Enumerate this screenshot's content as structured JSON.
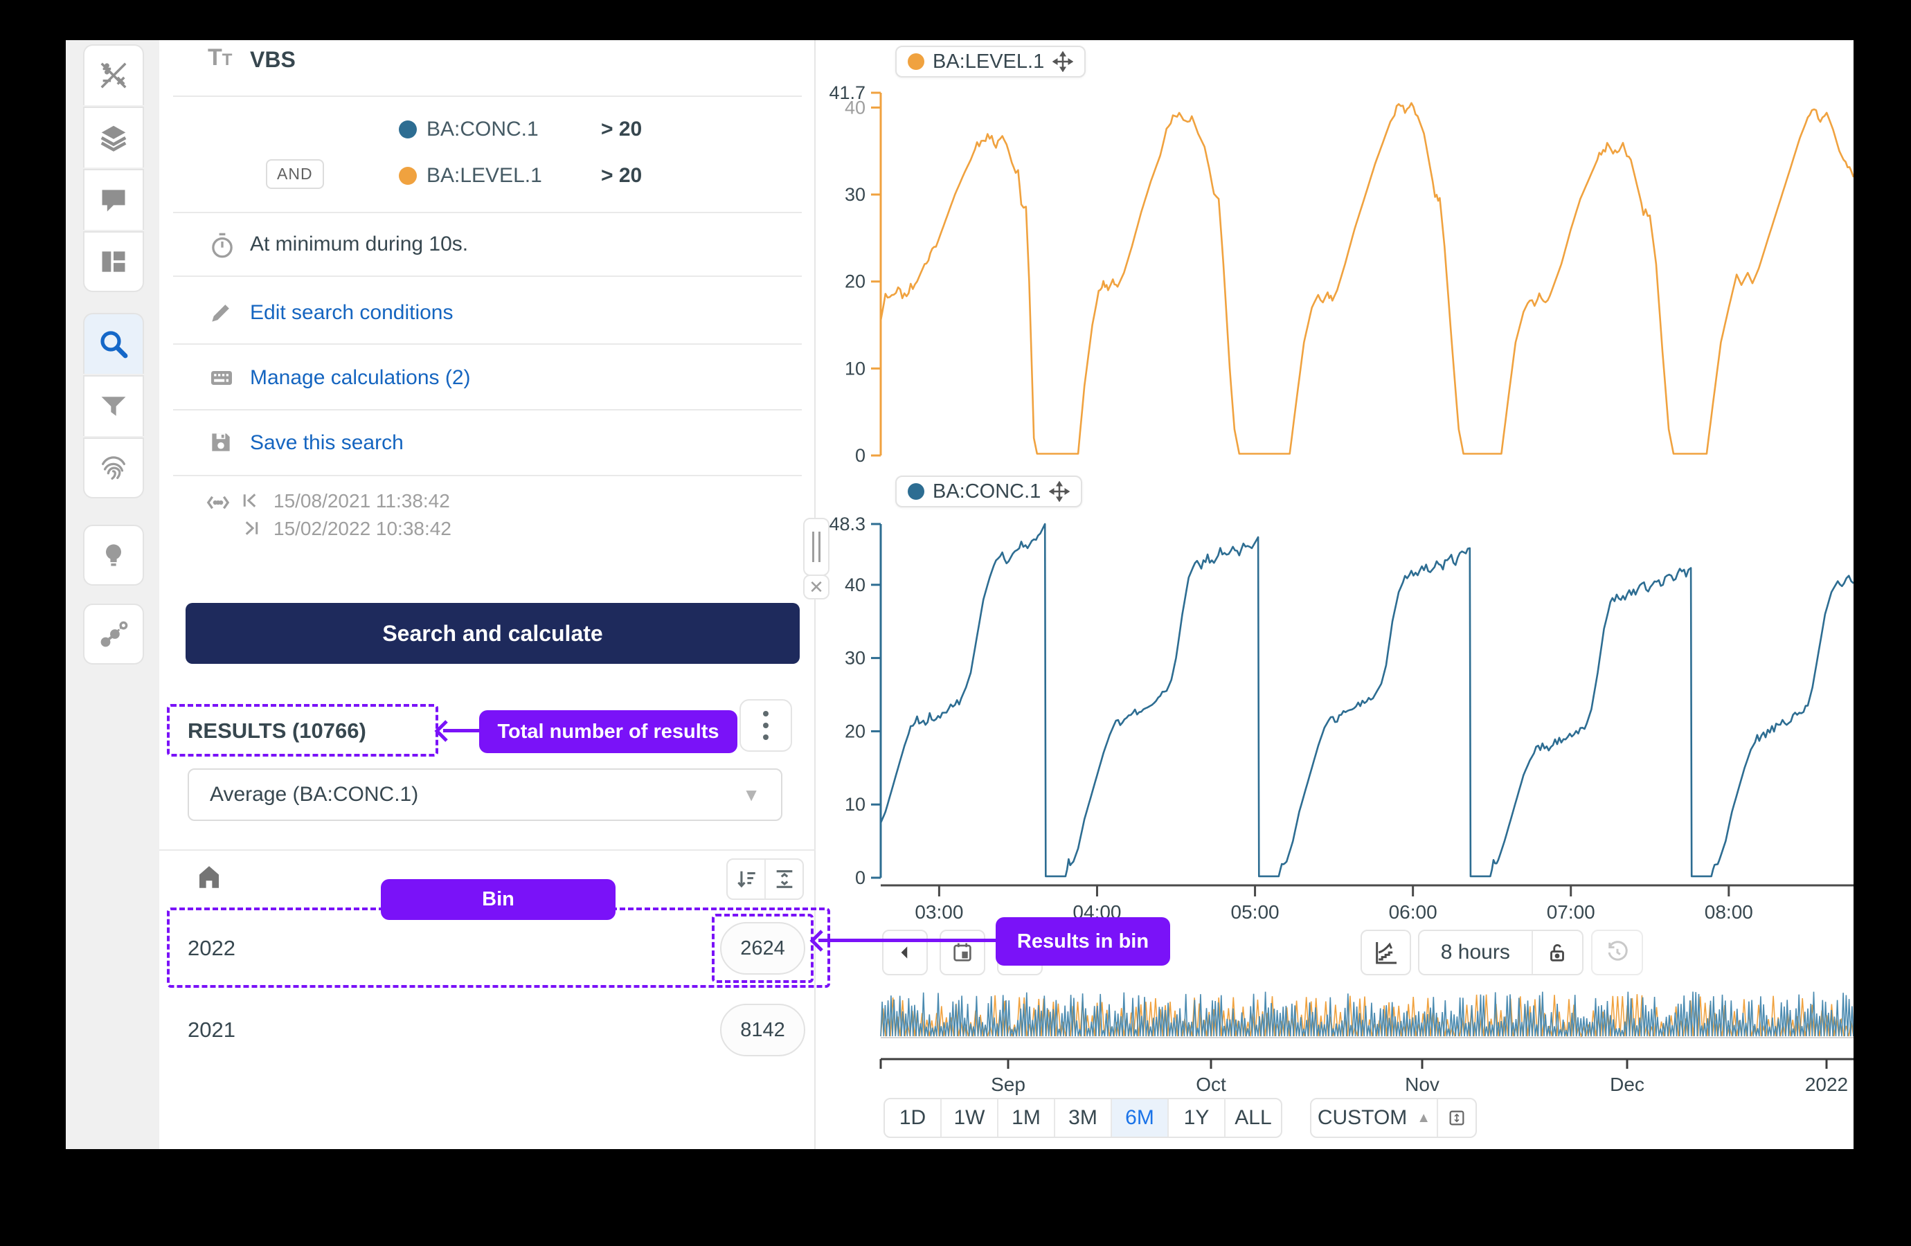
{
  "sidebar": {
    "items": [
      {
        "icon": "formulas-icon"
      },
      {
        "icon": "layers-icon"
      },
      {
        "icon": "comments-icon"
      },
      {
        "icon": "dashboard-icon"
      },
      {
        "icon": "search-icon",
        "active": true
      },
      {
        "icon": "filter-icon"
      },
      {
        "icon": "fingerprint-icon"
      },
      {
        "icon": "recommendations-icon"
      },
      {
        "icon": "context-icon"
      }
    ]
  },
  "search_panel": {
    "title": "VBS",
    "conditions": [
      {
        "operator": "",
        "tag": "BA:CONC.1",
        "comparison": "> 20",
        "color": "#2d6d92"
      },
      {
        "operator": "AND",
        "tag": "BA:LEVEL.1",
        "comparison": "> 20",
        "color": "#f0a23f"
      }
    ],
    "duration_condition": "At minimum during 10s.",
    "actions": [
      {
        "label": "Edit search conditions",
        "icon": "pencil-icon"
      },
      {
        "label": "Manage calculations (2)",
        "icon": "calculator-icon"
      },
      {
        "label": "Save this search",
        "icon": "save-icon"
      }
    ],
    "time_range": {
      "start": "15/08/2021 11:38:42",
      "end": "15/02/2022 10:38:42"
    },
    "search_button_label": "Search and calculate",
    "results_title": "RESULTS (10766)",
    "aggregation_selector": "Average (BA:CONC.1)",
    "bins": [
      {
        "label": "2022",
        "count": "2624"
      },
      {
        "label": "2021",
        "count": "8142"
      }
    ]
  },
  "annotations": {
    "accent_color": "#7a12f8",
    "total_results_label": "Total number of results",
    "bin_label": "Bin",
    "results_in_bin_label": "Results in bin"
  },
  "toolbar": {
    "duration_label": "8 hours"
  },
  "timeline": {
    "labels": [
      "Sep",
      "Oct",
      "Nov",
      "Dec",
      "2022"
    ]
  },
  "range_selector": {
    "buttons": [
      "1D",
      "1W",
      "1M",
      "3M",
      "6M",
      "1Y",
      "ALL"
    ],
    "active": "6M",
    "custom_label": "CUSTOM"
  },
  "chart_data": [
    {
      "type": "line",
      "legend": "BA:LEVEL.1",
      "color": "#f0a23f",
      "ylim": [
        0,
        41.7
      ],
      "yticks": [
        0,
        10,
        20,
        30,
        40
      ],
      "ymax_label": "41.7",
      "x_domain_hours": [
        2.63,
        8.79
      ],
      "xtick_hours": [
        3,
        4,
        5,
        6,
        7,
        8
      ],
      "xtick_labels": [
        "03:00",
        "04:00",
        "05:00",
        "06:00",
        "07:00",
        "08:00"
      ],
      "noise": {
        "seed": 7,
        "amp": 0.45
      },
      "points": [
        [
          2.63,
          15.5
        ],
        [
          2.66,
          18.5
        ],
        [
          2.7,
          18.0
        ],
        [
          2.74,
          19.0
        ],
        [
          2.78,
          18.2
        ],
        [
          2.82,
          19.3
        ],
        [
          2.86,
          20.0
        ],
        [
          2.92,
          22.5
        ],
        [
          2.98,
          24.0
        ],
        [
          3.04,
          27.0
        ],
        [
          3.1,
          30.0
        ],
        [
          3.16,
          32.5
        ],
        [
          3.2,
          34.0
        ],
        [
          3.24,
          35.8
        ],
        [
          3.28,
          36.2
        ],
        [
          3.32,
          36.8
        ],
        [
          3.36,
          35.8
        ],
        [
          3.4,
          36.4
        ],
        [
          3.44,
          35.0
        ],
        [
          3.47,
          33.0
        ],
        [
          3.5,
          32.8
        ],
        [
          3.52,
          29.0
        ],
        [
          3.55,
          28.6
        ],
        [
          3.57,
          20.0
        ],
        [
          3.59,
          8.0
        ],
        [
          3.6,
          2.0
        ],
        [
          3.62,
          0.2
        ],
        [
          3.88,
          0.2
        ],
        [
          3.92,
          8.0
        ],
        [
          3.97,
          15.0
        ],
        [
          4.01,
          18.8
        ],
        [
          4.04,
          19.8
        ],
        [
          4.07,
          19.0
        ],
        [
          4.1,
          20.2
        ],
        [
          4.13,
          19.4
        ],
        [
          4.17,
          21.0
        ],
        [
          4.22,
          24.0
        ],
        [
          4.28,
          28.0
        ],
        [
          4.34,
          31.5
        ],
        [
          4.4,
          34.5
        ],
        [
          4.44,
          37.5
        ],
        [
          4.48,
          38.8
        ],
        [
          4.52,
          39.2
        ],
        [
          4.56,
          38.4
        ],
        [
          4.6,
          39.0
        ],
        [
          4.64,
          37.0
        ],
        [
          4.68,
          35.5
        ],
        [
          4.71,
          33.0
        ],
        [
          4.74,
          30.0
        ],
        [
          4.77,
          29.5
        ],
        [
          4.8,
          22.0
        ],
        [
          4.84,
          10.0
        ],
        [
          4.87,
          3.0
        ],
        [
          4.9,
          0.2
        ],
        [
          5.22,
          0.2
        ],
        [
          5.26,
          6.0
        ],
        [
          5.31,
          13.0
        ],
        [
          5.36,
          17.0
        ],
        [
          5.4,
          18.5
        ],
        [
          5.43,
          17.6
        ],
        [
          5.46,
          18.8
        ],
        [
          5.49,
          17.8
        ],
        [
          5.52,
          19.0
        ],
        [
          5.57,
          22.0
        ],
        [
          5.63,
          26.0
        ],
        [
          5.7,
          30.0
        ],
        [
          5.76,
          33.5
        ],
        [
          5.82,
          36.5
        ],
        [
          5.87,
          39.0
        ],
        [
          5.91,
          40.3
        ],
        [
          5.95,
          39.6
        ],
        [
          5.99,
          40.4
        ],
        [
          6.03,
          39.0
        ],
        [
          6.07,
          37.0
        ],
        [
          6.11,
          33.0
        ],
        [
          6.14,
          30.0
        ],
        [
          6.17,
          29.6
        ],
        [
          6.2,
          24.0
        ],
        [
          6.25,
          12.0
        ],
        [
          6.29,
          3.0
        ],
        [
          6.32,
          0.2
        ],
        [
          6.56,
          0.2
        ],
        [
          6.6,
          6.0
        ],
        [
          6.65,
          13.0
        ],
        [
          6.7,
          16.5
        ],
        [
          6.74,
          18.0
        ],
        [
          6.77,
          17.2
        ],
        [
          6.8,
          18.4
        ],
        [
          6.84,
          17.6
        ],
        [
          6.88,
          19.0
        ],
        [
          6.94,
          22.0
        ],
        [
          7.0,
          26.0
        ],
        [
          7.06,
          29.5
        ],
        [
          7.12,
          32.0
        ],
        [
          7.18,
          34.5
        ],
        [
          7.23,
          35.6
        ],
        [
          7.28,
          34.8
        ],
        [
          7.33,
          35.7
        ],
        [
          7.38,
          34.0
        ],
        [
          7.42,
          31.0
        ],
        [
          7.46,
          28.0
        ],
        [
          7.5,
          27.6
        ],
        [
          7.54,
          22.0
        ],
        [
          7.58,
          12.0
        ],
        [
          7.62,
          3.0
        ],
        [
          7.65,
          0.2
        ],
        [
          7.86,
          0.2
        ],
        [
          7.9,
          6.0
        ],
        [
          7.95,
          13.0
        ],
        [
          8.0,
          17.0
        ],
        [
          8.05,
          20.8
        ],
        [
          8.08,
          19.6
        ],
        [
          8.12,
          21.0
        ],
        [
          8.15,
          19.8
        ],
        [
          8.19,
          21.5
        ],
        [
          8.25,
          25.0
        ],
        [
          8.32,
          29.0
        ],
        [
          8.39,
          33.0
        ],
        [
          8.45,
          36.5
        ],
        [
          8.5,
          38.8
        ],
        [
          8.54,
          39.6
        ],
        [
          8.58,
          38.6
        ],
        [
          8.62,
          39.4
        ],
        [
          8.66,
          37.5
        ],
        [
          8.7,
          35.0
        ],
        [
          8.74,
          33.5
        ],
        [
          8.79,
          32.0
        ]
      ]
    },
    {
      "type": "line",
      "legend": "BA:CONC.1",
      "color": "#2d6d92",
      "ylim": [
        0,
        48.3
      ],
      "yticks": [
        0,
        10,
        20,
        30,
        40
      ],
      "ymax_label": "48.3",
      "x_domain_hours": [
        2.63,
        8.79
      ],
      "xtick_hours": [
        3,
        4,
        5,
        6,
        7,
        8
      ],
      "xtick_labels": [
        "03:00",
        "04:00",
        "05:00",
        "06:00",
        "07:00",
        "08:00"
      ],
      "noise": {
        "seed": 13,
        "amp": 0.55
      },
      "points": [
        [
          2.63,
          7.5
        ],
        [
          2.66,
          9.0
        ],
        [
          2.7,
          12.0
        ],
        [
          2.74,
          15.0
        ],
        [
          2.78,
          18.0
        ],
        [
          2.82,
          20.5
        ],
        [
          2.86,
          21.5
        ],
        [
          2.9,
          21.0
        ],
        [
          2.94,
          22.0
        ],
        [
          2.98,
          21.5
        ],
        [
          3.02,
          22.5
        ],
        [
          3.06,
          23.0
        ],
        [
          3.1,
          23.5
        ],
        [
          3.14,
          24.5
        ],
        [
          3.17,
          26.0
        ],
        [
          3.2,
          28.0
        ],
        [
          3.24,
          33.0
        ],
        [
          3.28,
          38.0
        ],
        [
          3.32,
          41.0
        ],
        [
          3.36,
          43.5
        ],
        [
          3.4,
          44.0
        ],
        [
          3.44,
          43.2
        ],
        [
          3.48,
          44.8
        ],
        [
          3.52,
          45.5
        ],
        [
          3.56,
          45.0
        ],
        [
          3.6,
          46.5
        ],
        [
          3.64,
          47.0
        ],
        [
          3.67,
          48.3
        ],
        [
          3.675,
          0.2
        ],
        [
          3.8,
          0.2
        ],
        [
          3.82,
          2.0
        ],
        [
          3.85,
          2.2
        ],
        [
          3.88,
          4.0
        ],
        [
          3.92,
          8.0
        ],
        [
          3.96,
          11.0
        ],
        [
          4.0,
          14.0
        ],
        [
          4.04,
          17.0
        ],
        [
          4.08,
          19.5
        ],
        [
          4.12,
          21.5
        ],
        [
          4.16,
          21.0
        ],
        [
          4.2,
          22.0
        ],
        [
          4.24,
          22.5
        ],
        [
          4.28,
          23.0
        ],
        [
          4.32,
          23.5
        ],
        [
          4.36,
          24.0
        ],
        [
          4.4,
          24.8
        ],
        [
          4.44,
          25.5
        ],
        [
          4.47,
          27.0
        ],
        [
          4.5,
          30.0
        ],
        [
          4.54,
          36.0
        ],
        [
          4.58,
          41.0
        ],
        [
          4.62,
          43.0
        ],
        [
          4.66,
          42.5
        ],
        [
          4.7,
          43.8
        ],
        [
          4.74,
          43.0
        ],
        [
          4.78,
          44.5
        ],
        [
          4.82,
          44.0
        ],
        [
          4.86,
          45.0
        ],
        [
          4.9,
          44.3
        ],
        [
          4.94,
          45.5
        ],
        [
          4.98,
          45.0
        ],
        [
          5.02,
          46.5
        ],
        [
          5.025,
          0.2
        ],
        [
          5.15,
          0.2
        ],
        [
          5.17,
          2.0
        ],
        [
          5.2,
          2.2
        ],
        [
          5.24,
          5.0
        ],
        [
          5.28,
          9.0
        ],
        [
          5.32,
          12.0
        ],
        [
          5.36,
          15.0
        ],
        [
          5.4,
          18.0
        ],
        [
          5.44,
          20.5
        ],
        [
          5.48,
          22.0
        ],
        [
          5.52,
          21.5
        ],
        [
          5.56,
          22.5
        ],
        [
          5.6,
          23.0
        ],
        [
          5.64,
          23.5
        ],
        [
          5.68,
          24.0
        ],
        [
          5.72,
          24.5
        ],
        [
          5.76,
          25.0
        ],
        [
          5.8,
          26.5
        ],
        [
          5.83,
          29.0
        ],
        [
          5.87,
          35.0
        ],
        [
          5.91,
          39.0
        ],
        [
          5.95,
          41.0
        ],
        [
          5.99,
          42.0
        ],
        [
          6.03,
          41.3
        ],
        [
          6.07,
          42.5
        ],
        [
          6.11,
          42.0
        ],
        [
          6.15,
          43.2
        ],
        [
          6.19,
          42.6
        ],
        [
          6.23,
          43.8
        ],
        [
          6.27,
          43.2
        ],
        [
          6.31,
          44.3
        ],
        [
          6.36,
          45.0
        ],
        [
          6.365,
          0.2
        ],
        [
          6.49,
          0.2
        ],
        [
          6.51,
          2.0
        ],
        [
          6.54,
          2.4
        ],
        [
          6.58,
          5.0
        ],
        [
          6.62,
          8.0
        ],
        [
          6.66,
          11.0
        ],
        [
          6.7,
          14.0
        ],
        [
          6.74,
          16.0
        ],
        [
          6.78,
          17.5
        ],
        [
          6.82,
          18.0
        ],
        [
          6.86,
          17.6
        ],
        [
          6.9,
          18.4
        ],
        [
          6.94,
          18.8
        ],
        [
          6.98,
          19.2
        ],
        [
          7.02,
          19.6
        ],
        [
          7.06,
          20.0
        ],
        [
          7.1,
          21.0
        ],
        [
          7.13,
          23.0
        ],
        [
          7.17,
          28.0
        ],
        [
          7.21,
          34.0
        ],
        [
          7.25,
          37.5
        ],
        [
          7.29,
          38.5
        ],
        [
          7.33,
          38.0
        ],
        [
          7.37,
          39.2
        ],
        [
          7.41,
          38.8
        ],
        [
          7.45,
          40.0
        ],
        [
          7.49,
          39.4
        ],
        [
          7.53,
          40.6
        ],
        [
          7.57,
          40.2
        ],
        [
          7.61,
          41.2
        ],
        [
          7.65,
          40.8
        ],
        [
          7.69,
          41.8
        ],
        [
          7.73,
          41.4
        ],
        [
          7.76,
          42.3
        ],
        [
          7.765,
          0.2
        ],
        [
          7.89,
          0.2
        ],
        [
          7.91,
          2.0
        ],
        [
          7.94,
          2.4
        ],
        [
          7.98,
          5.0
        ],
        [
          8.02,
          9.0
        ],
        [
          8.06,
          12.0
        ],
        [
          8.1,
          15.0
        ],
        [
          8.14,
          17.5
        ],
        [
          8.18,
          19.0
        ],
        [
          8.22,
          19.5
        ],
        [
          8.26,
          20.0
        ],
        [
          8.3,
          20.5
        ],
        [
          8.34,
          21.0
        ],
        [
          8.38,
          21.5
        ],
        [
          8.42,
          22.0
        ],
        [
          8.46,
          22.5
        ],
        [
          8.5,
          23.5
        ],
        [
          8.53,
          26.0
        ],
        [
          8.57,
          31.0
        ],
        [
          8.61,
          36.0
        ],
        [
          8.65,
          39.0
        ],
        [
          8.69,
          40.5
        ],
        [
          8.73,
          40.0
        ],
        [
          8.76,
          41.0
        ],
        [
          8.79,
          40.2
        ]
      ]
    },
    {
      "type": "area",
      "name": "overview-strip",
      "colors": [
        "#f0a23f",
        "#4a8ab0"
      ],
      "description": "6-month dense overview of both tags",
      "seed": 5,
      "spikes_blue": 330,
      "spikes_orange": 200
    }
  ]
}
